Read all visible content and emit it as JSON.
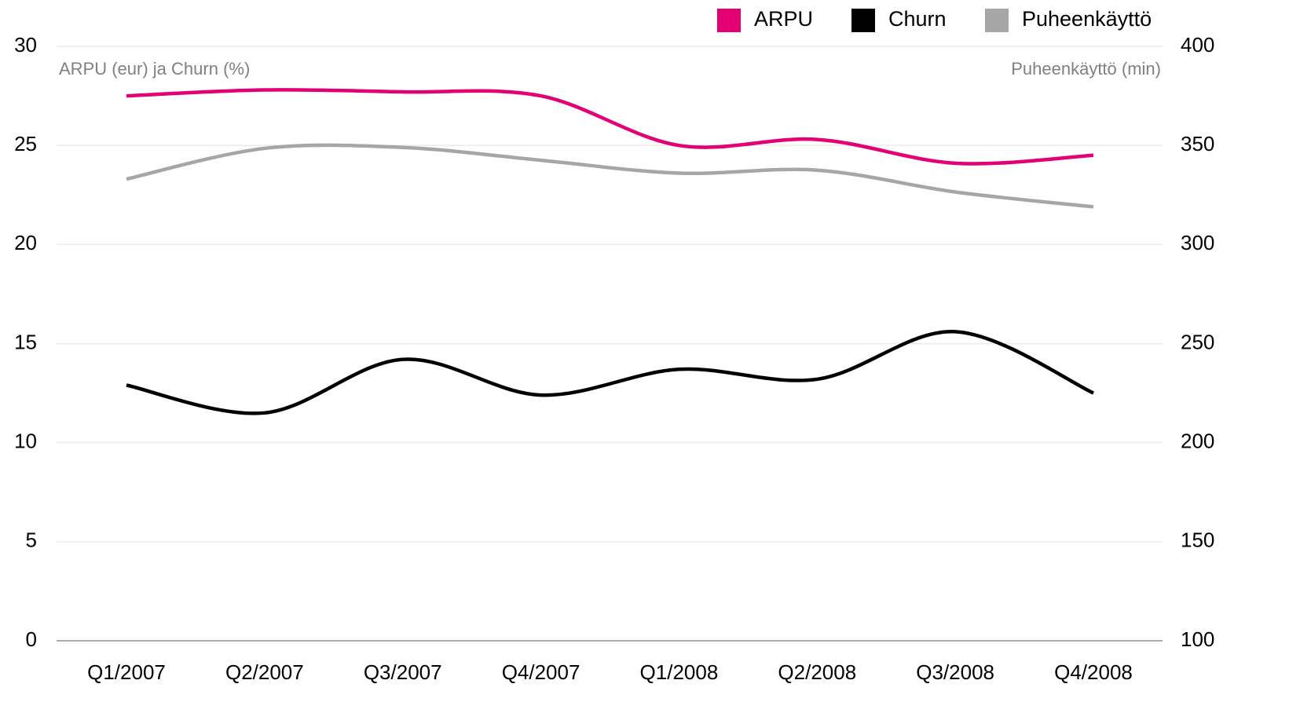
{
  "chart_data": {
    "type": "line",
    "y_axis_label": "ARPU (eur) ja Churn (%)",
    "y2_axis_label": "Puheenkäyttö (min)",
    "categories": [
      "Q1/2007",
      "Q2/2007",
      "Q3/2007",
      "Q4/2007",
      "Q1/2008",
      "Q2/2008",
      "Q3/2008",
      "Q4/2008"
    ],
    "series": [
      {
        "name": "ARPU",
        "color": "#e20074",
        "values": [
          27.5,
          27.8,
          27.7,
          27.5,
          25.0,
          25.3,
          24.1,
          24.5
        ]
      },
      {
        "name": "Churn",
        "color": "#000000",
        "values": [
          12.9,
          11.5,
          14.2,
          12.4,
          13.7,
          13.2,
          15.6,
          12.5
        ]
      },
      {
        "name": "Puheenkäyttö",
        "color": "#a6a6a6",
        "axis": "y2",
        "values": [
          333,
          348.5,
          349,
          342.5,
          336,
          337.5,
          326.5,
          319
        ]
      }
    ],
    "ylim": [
      0,
      30
    ],
    "yticks": [
      0,
      5,
      10,
      15,
      20,
      25,
      30
    ],
    "y2lim": [
      100,
      400
    ],
    "y2ticks": [
      100,
      150,
      200,
      250,
      300,
      350,
      400
    ],
    "grid": true,
    "legend": "top-right"
  }
}
